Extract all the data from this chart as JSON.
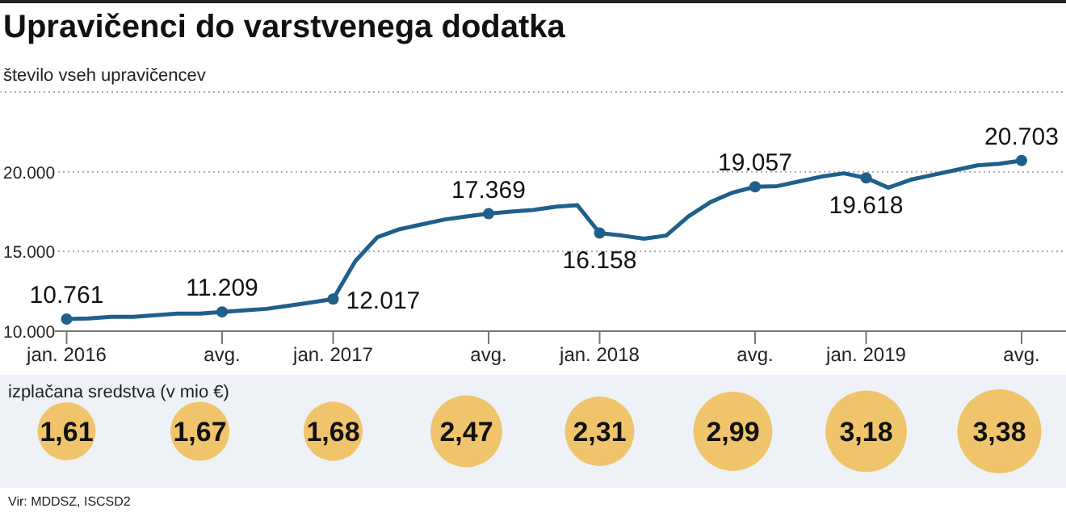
{
  "chart_data": [
    {
      "type": "line",
      "title": "Upravičenci do varstvenega dodatka",
      "ylabel": "število vseh upravičencev",
      "x": [
        "2016-01",
        "2016-02",
        "2016-03",
        "2016-04",
        "2016-05",
        "2016-06",
        "2016-07",
        "2016-08",
        "2016-09",
        "2016-10",
        "2016-11",
        "2016-12",
        "2017-01",
        "2017-02",
        "2017-03",
        "2017-04",
        "2017-05",
        "2017-06",
        "2017-07",
        "2017-08",
        "2017-09",
        "2017-10",
        "2017-11",
        "2017-12",
        "2018-01",
        "2018-02",
        "2018-03",
        "2018-04",
        "2018-05",
        "2018-06",
        "2018-07",
        "2018-08",
        "2018-09",
        "2018-10",
        "2018-11",
        "2018-12",
        "2019-01",
        "2019-02",
        "2019-03",
        "2019-04",
        "2019-05",
        "2019-06",
        "2019-07",
        "2019-08"
      ],
      "series": [
        {
          "color": "#1f5f8b",
          "values": [
            10761,
            10800,
            10900,
            10900,
            11000,
            11100,
            11100,
            11209,
            11300,
            11400,
            11600,
            11800,
            12017,
            14400,
            15900,
            16400,
            16700,
            17000,
            17200,
            17369,
            17500,
            17600,
            17800,
            17900,
            16158,
            16000,
            15800,
            16000,
            17200,
            18100,
            18700,
            19057,
            19100,
            19400,
            19700,
            19900,
            19618,
            19000,
            19500,
            19800,
            20100,
            20400,
            20500,
            20703
          ],
          "value_labels": [
            "10.761",
            null,
            null,
            null,
            null,
            null,
            null,
            "11.209",
            null,
            null,
            null,
            null,
            "12.017",
            null,
            null,
            null,
            null,
            null,
            null,
            "17.369",
            null,
            null,
            null,
            null,
            "16.158",
            null,
            null,
            null,
            null,
            null,
            null,
            "19.057",
            null,
            null,
            null,
            null,
            "19.618",
            null,
            null,
            null,
            null,
            null,
            null,
            "20.703"
          ]
        }
      ],
      "xlim": [
        "2015-10",
        "2019-10"
      ],
      "xticks": [
        {
          "value": "2016-01",
          "label": "jan. 2016"
        },
        {
          "value": "2016-08",
          "label": "avg."
        },
        {
          "value": "2017-01",
          "label": "jan. 2017"
        },
        {
          "value": "2017-08",
          "label": "avg."
        },
        {
          "value": "2018-01",
          "label": "jan. 2018"
        },
        {
          "value": "2018-08",
          "label": "avg."
        },
        {
          "value": "2019-01",
          "label": "jan. 2019"
        },
        {
          "value": "2019-08",
          "label": "avg."
        }
      ],
      "ylim": [
        10000,
        25000
      ],
      "yticks": [
        {
          "value": 10000,
          "label": "10.000"
        },
        {
          "value": 15000,
          "label": "15.000"
        },
        {
          "value": 20000,
          "label": "20.000"
        },
        {
          "value": 25000,
          "label": null
        }
      ],
      "grid": "y",
      "line_style": "solid"
    },
    {
      "type": "other",
      "title": "izplačana sredstva (v mio €)",
      "categories": [
        null,
        null,
        null,
        null,
        null,
        null,
        null,
        null
      ],
      "values": [
        1.61,
        1.67,
        1.68,
        2.47,
        2.31,
        2.99,
        3.18,
        3.38
      ],
      "value_labels": [
        "1,61",
        "1,67",
        "1,68",
        "2,47",
        "2,31",
        "2,99",
        "3,18",
        "3,38"
      ],
      "color": "#f0c46a",
      "annotations": [
        "Vir: MDDSZ, ISCSD2"
      ]
    }
  ]
}
